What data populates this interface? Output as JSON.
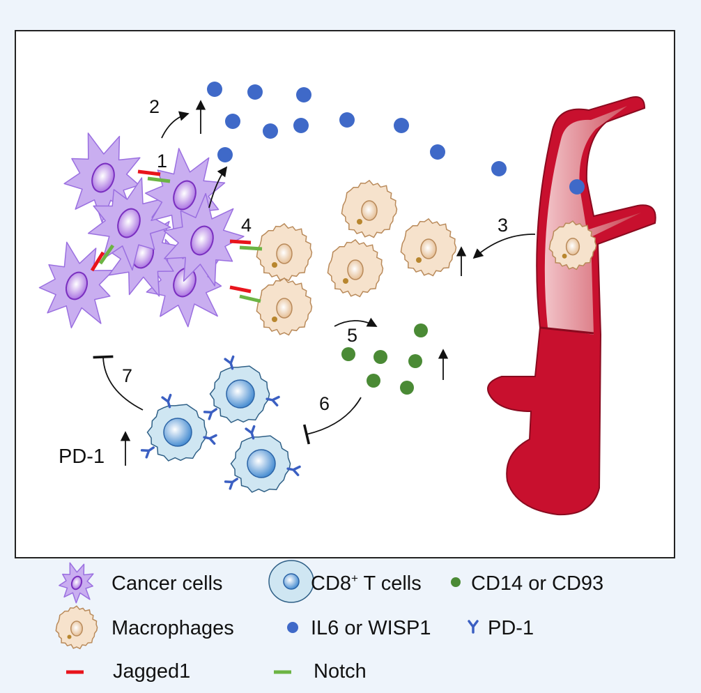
{
  "steps": {
    "s1": "1",
    "s2": "2",
    "s3": "3",
    "s4": "4",
    "s5": "5",
    "s6": "6",
    "s7": "7"
  },
  "pd1_label": "PD-1",
  "legend": {
    "cancer": "Cancer cells",
    "tcell": "CD8",
    "tcell_sup": "+",
    "tcell_rest": " T cells",
    "cd14": "CD14 or CD93",
    "macrophage": "Macrophages",
    "il6": "IL6 or WISP1",
    "pd1": "PD-1",
    "jagged": "Jagged1",
    "notch": "Notch"
  },
  "colors": {
    "background": "#eef4fb",
    "cancer_cell": "#c9aef0",
    "macrophage": "#f6e2cc",
    "tcell": "#cfe6f2",
    "il6_dot": "#3f69c8",
    "cd14_dot": "#4a8a35",
    "jagged": "#e8141c",
    "notch": "#6cb444",
    "vessel": "#c8102e"
  }
}
